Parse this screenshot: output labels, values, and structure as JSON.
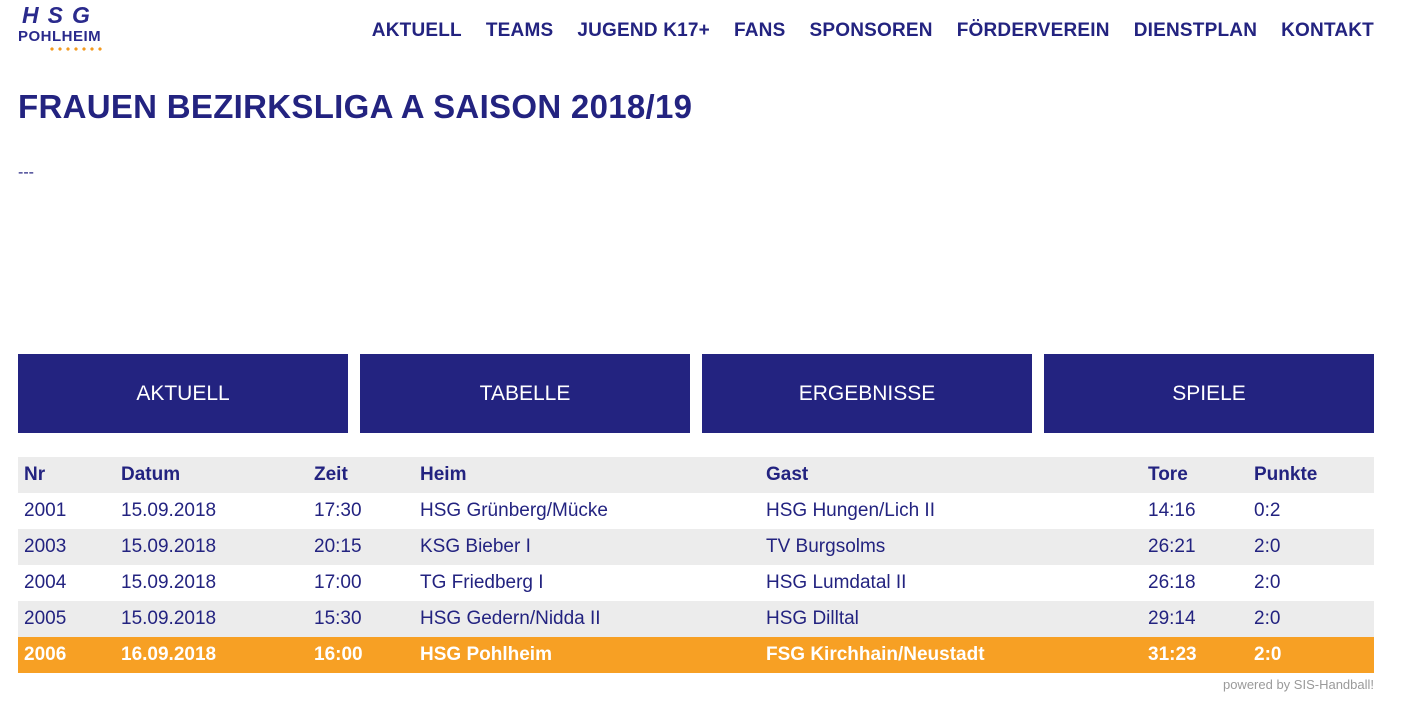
{
  "logo": {
    "top": "HSG",
    "name": "POHLHEIM"
  },
  "nav": [
    "AKTUELL",
    "TEAMS",
    "JUGEND K17+",
    "FANS",
    "SPONSOREN",
    "FÖRDERVEREIN",
    "DIENSTPLAN",
    "KONTAKT"
  ],
  "page": {
    "title": "FRAUEN BEZIRKSLIGA A SAISON 2018/19",
    "separator": "---"
  },
  "tabs": [
    "AKTUELL",
    "TABELLE",
    "ERGEBNISSE",
    "SPIELE"
  ],
  "table": {
    "headers": [
      "Nr",
      "Datum",
      "Zeit",
      "Heim",
      "Gast",
      "Tore",
      "Punkte"
    ],
    "rows": [
      [
        "2001",
        "15.09.2018",
        "17:30",
        "HSG Grünberg/Mücke",
        "HSG Hungen/Lich II",
        "14:16",
        "0:2"
      ],
      [
        "2003",
        "15.09.2018",
        "20:15",
        "KSG Bieber I",
        "TV Burgsolms",
        "26:21",
        "2:0"
      ],
      [
        "2004",
        "15.09.2018",
        "17:00",
        "TG Friedberg I",
        "HSG Lumdatal II",
        "26:18",
        "2:0"
      ],
      [
        "2005",
        "15.09.2018",
        "15:30",
        "HSG Gedern/Nidda II",
        "HSG Dilltal",
        "29:14",
        "2:0"
      ],
      [
        "2006",
        "16.09.2018",
        "16:00",
        "HSG Pohlheim",
        "FSG Kirchhain/Neustadt",
        "31:23",
        "2:0"
      ]
    ],
    "highlight_row": 4
  },
  "footer": {
    "powered": "powered by SIS-Handball!"
  },
  "colors": {
    "primary": "#232380",
    "accent": "#f7a024",
    "stripe": "#ececec"
  }
}
